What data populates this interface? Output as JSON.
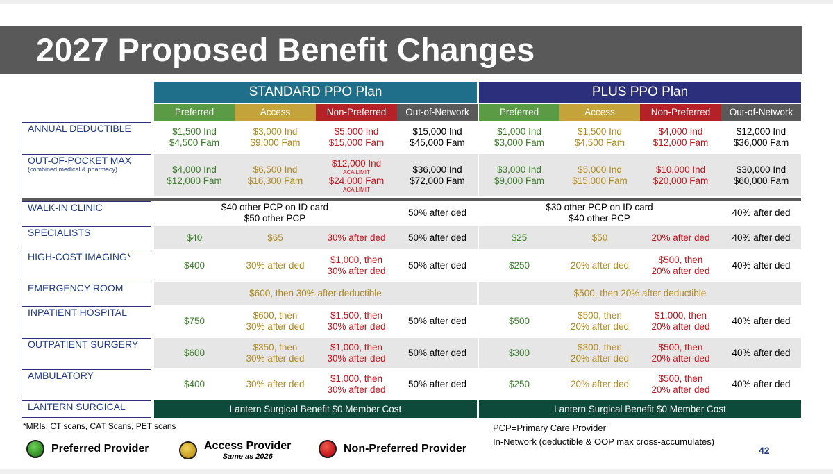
{
  "title": "2027 Proposed Benefit Changes",
  "colors": {
    "standard_header": "#1f6f8b",
    "plus_header": "#2c2f7c",
    "preferred": "#5b9b45",
    "access": "#c4a43a",
    "non_preferred": "#b42126",
    "out_of_network": "#595959",
    "lantern": "#0e4a3a"
  },
  "plans": [
    {
      "name": "STANDARD PPO Plan",
      "tiers": [
        "Preferred",
        "Access",
        "Non-Preferred",
        "Out-of-Network"
      ]
    },
    {
      "name": "PLUS PPO Plan",
      "tiers": [
        "Preferred",
        "Access",
        "Non-Preferred",
        "Out-of-Network"
      ]
    }
  ],
  "rows": {
    "deductible": {
      "label": "ANNUAL DEDUCTIBLE",
      "standard": [
        [
          "$1,500 Ind",
          "$4,500 Fam"
        ],
        [
          "$3,000 Ind",
          "$9,000 Fam"
        ],
        [
          "$5,000 Ind",
          "$15,000 Fam"
        ],
        [
          "$15,000 Ind",
          "$45,000 Fam"
        ]
      ],
      "plus": [
        [
          "$1,000 Ind",
          "$3,000 Fam"
        ],
        [
          "$1,500 Ind",
          "$4,500 Fam"
        ],
        [
          "$4,000 Ind",
          "$12,000 Fam"
        ],
        [
          "$12,000 Ind",
          "$36,000 Fam"
        ]
      ]
    },
    "oop": {
      "label": "OUT-OF-POCKET MAX",
      "sublabel": "(combined medical & pharmacy)",
      "standard": [
        [
          "$4,000 Ind",
          "$12,000 Fam"
        ],
        [
          "$6,500 Ind",
          "$16,300 Fam"
        ],
        [
          "$12,000 Ind",
          "ACA LIMIT",
          "$24,000 Fam",
          "ACA LIMIT"
        ],
        [
          "$36,000 Ind",
          "$72,000 Fam"
        ]
      ],
      "plus": [
        [
          "$3,000 Ind",
          "$9,000 Fam"
        ],
        [
          "$5,000 Ind",
          "$15,000 Fam"
        ],
        [
          "$10,000 Ind",
          "$20,000 Fam"
        ],
        [
          "$30,000 Ind",
          "$60,000 Fam"
        ]
      ]
    },
    "walkin": {
      "label": "WALK-IN CLINIC",
      "standard_in": [
        "$40 other PCP on ID card",
        "$50 other PCP"
      ],
      "standard_oon": "50% after ded",
      "plus_in": [
        "$30 other PCP on ID card",
        "$40 other PCP"
      ],
      "plus_oon": "40% after ded"
    },
    "specialists": {
      "label": "SPECIALISTS",
      "standard": [
        [
          "$40"
        ],
        [
          "$65"
        ],
        [
          "30% after ded"
        ],
        [
          "50% after ded"
        ]
      ],
      "plus": [
        [
          "$25"
        ],
        [
          "$50"
        ],
        [
          "20% after ded"
        ],
        [
          "40% after ded"
        ]
      ]
    },
    "imaging": {
      "label": "HIGH-COST IMAGING*",
      "standard": [
        [
          "$400"
        ],
        [
          "30% after ded"
        ],
        [
          "$1,000, then",
          "30% after ded"
        ],
        [
          "50% after ded"
        ]
      ],
      "plus": [
        [
          "$250"
        ],
        [
          "20% after ded"
        ],
        [
          "$500, then",
          "20% after ded"
        ],
        [
          "40% after ded"
        ]
      ]
    },
    "er": {
      "label": "EMERGENCY ROOM",
      "standard": "$600, then 30% after deductible",
      "plus": "$500, then 20% after deductible"
    },
    "inpatient": {
      "label": "INPATIENT HOSPITAL",
      "standard": [
        [
          "$750"
        ],
        [
          "$600, then",
          "30% after ded"
        ],
        [
          "$1,500, then",
          "30% after ded"
        ],
        [
          "50% after ded"
        ]
      ],
      "plus": [
        [
          "$500"
        ],
        [
          "$500, then",
          "20% after ded"
        ],
        [
          "$1,000, then",
          "20% after ded"
        ],
        [
          "40% after ded"
        ]
      ]
    },
    "outpatient": {
      "label": "OUTPATIENT SURGERY",
      "standard": [
        [
          "$600"
        ],
        [
          "$350, then",
          "30% after ded"
        ],
        [
          "$1,000, then",
          "30% after ded"
        ],
        [
          "50% after ded"
        ]
      ],
      "plus": [
        [
          "$300"
        ],
        [
          "$300, then",
          "20% after ded"
        ],
        [
          "$500, then",
          "20% after ded"
        ],
        [
          "40% after ded"
        ]
      ]
    },
    "ambulatory": {
      "label": "AMBULATORY",
      "standard": [
        [
          "$400"
        ],
        [
          "30% after ded"
        ],
        [
          "$1,000, then",
          "30% after ded"
        ],
        [
          "50% after ded"
        ]
      ],
      "plus": [
        [
          "$250"
        ],
        [
          "20% after ded"
        ],
        [
          "$500, then",
          "20% after ded"
        ],
        [
          "40% after ded"
        ]
      ]
    },
    "lantern": {
      "label": "LANTERN SURGICAL",
      "standard": "Lantern Surgical Benefit $0 Member Cost",
      "plus": "Lantern Surgical Benefit $0 Member Cost"
    }
  },
  "footnote": "*MRIs, CT scans, CAT Scans, PET scans",
  "legend": [
    {
      "label": "Preferred Provider",
      "icon": "green-circle-icon"
    },
    {
      "label": "Access Provider",
      "sublabel": "Same as 2026",
      "icon": "gold-circle-icon"
    },
    {
      "label": "Non-Preferred Provider",
      "icon": "red-circle-icon"
    }
  ],
  "notes": [
    "PCP=Primary Care Provider",
    "In-Network (deductible & OOP max cross-accumulates)"
  ],
  "page_number": "42"
}
